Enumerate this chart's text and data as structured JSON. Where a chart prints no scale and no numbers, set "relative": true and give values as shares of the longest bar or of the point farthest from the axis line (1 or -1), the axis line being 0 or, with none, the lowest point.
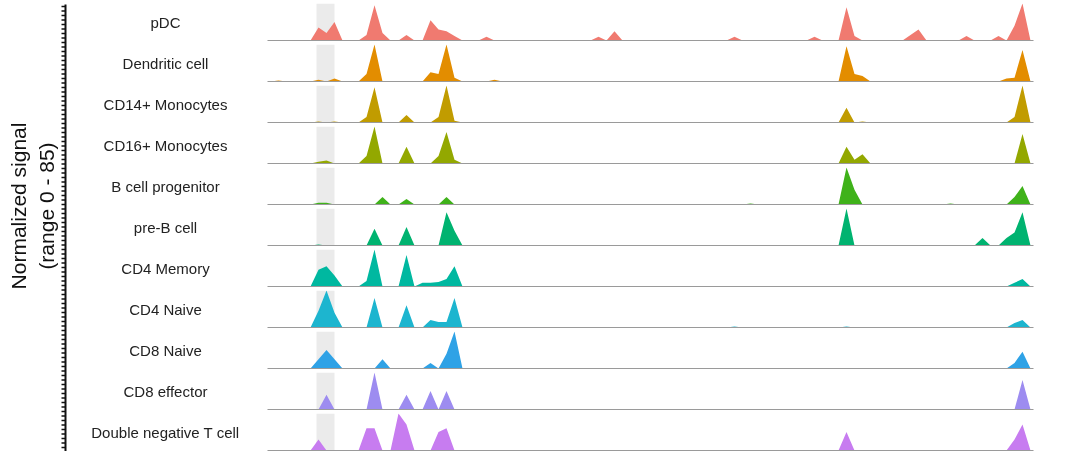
{
  "chart_data": [
    {
      "type": "area",
      "title": "pDC",
      "relative": true,
      "ylabel": "Normalized signal\n(range 0 - 85)",
      "categories": [
        null,
        null,
        null,
        null,
        null,
        null,
        null,
        null,
        null,
        null,
        null,
        null,
        null,
        null,
        null,
        null,
        null,
        null,
        null,
        null,
        null,
        null,
        null,
        null,
        null,
        null,
        null,
        null,
        null,
        null,
        null,
        null,
        null,
        null,
        null,
        null,
        null,
        null,
        null,
        null,
        null,
        null,
        null,
        null,
        null,
        null,
        null,
        null,
        null,
        null,
        null,
        null,
        null,
        null,
        null,
        null,
        null,
        null,
        null,
        null,
        null,
        null,
        null,
        null,
        null,
        null,
        null,
        null,
        null,
        null,
        null,
        null,
        null,
        null,
        null,
        null,
        null,
        null,
        null,
        null,
        null,
        null,
        null,
        null,
        null,
        null,
        null,
        null,
        null,
        null,
        null,
        null,
        null,
        null,
        null,
        null
      ],
      "series": [
        {
          "color": "#f07a70",
          "values": [
            0,
            0,
            0,
            0,
            0,
            0,
            0.35,
            0.2,
            0.5,
            0,
            0,
            0,
            0.15,
            0.95,
            0.2,
            0,
            0,
            0.15,
            0,
            0,
            0.55,
            0.3,
            0.25,
            0.12,
            0,
            0,
            0,
            0.1,
            0,
            0,
            0,
            0,
            0,
            0,
            0,
            0,
            0,
            0,
            0,
            0,
            0,
            0.1,
            0,
            0.25,
            0,
            0,
            0,
            0,
            0,
            0,
            0,
            0,
            0,
            0,
            0,
            0,
            0,
            0,
            0.1,
            0,
            0,
            0,
            0,
            0,
            0,
            0,
            0,
            0,
            0.1,
            0,
            0,
            0,
            0.9,
            0.12,
            0,
            0,
            0,
            0,
            0,
            0,
            0.15,
            0.3,
            0,
            0,
            0,
            0,
            0,
            0.12,
            0,
            0,
            0,
            0.12,
            0,
            0.4,
            1,
            0
          ]
        }
      ]
    },
    {
      "type": "area",
      "title": "Dendritic cell",
      "relative": true,
      "categories": [
        null,
        null,
        null,
        null,
        null,
        null,
        null,
        null,
        null,
        null,
        null,
        null,
        null,
        null,
        null,
        null,
        null,
        null,
        null,
        null,
        null,
        null,
        null,
        null,
        null,
        null,
        null,
        null,
        null,
        null,
        null,
        null,
        null,
        null,
        null,
        null,
        null,
        null,
        null,
        null,
        null,
        null,
        null,
        null,
        null,
        null,
        null,
        null,
        null,
        null,
        null,
        null,
        null,
        null,
        null,
        null,
        null,
        null,
        null,
        null,
        null,
        null,
        null,
        null,
        null,
        null,
        null,
        null,
        null,
        null,
        null,
        null,
        null,
        null,
        null,
        null,
        null,
        null,
        null,
        null,
        null,
        null,
        null,
        null,
        null,
        null,
        null,
        null,
        null,
        null,
        null,
        null,
        null,
        null,
        null,
        null
      ],
      "series": [
        {
          "color": "#e38d00",
          "values": [
            0,
            0.03,
            0,
            0,
            0,
            0,
            0.05,
            0,
            0.08,
            0,
            0,
            0,
            0.2,
            1,
            0,
            0,
            0,
            0,
            0,
            0,
            0.25,
            0.2,
            1,
            0.1,
            0,
            0,
            0,
            0,
            0.05,
            0,
            0,
            0,
            0,
            0,
            0,
            0,
            0,
            0,
            0,
            0,
            0,
            0,
            0,
            0,
            0,
            0,
            0,
            0,
            0,
            0,
            0,
            0,
            0,
            0,
            0,
            0,
            0,
            0,
            0,
            0,
            0,
            0,
            0,
            0,
            0,
            0,
            0,
            0,
            0,
            0,
            0,
            0,
            0.95,
            0.2,
            0.15,
            0,
            0,
            0,
            0,
            0,
            0,
            0,
            0,
            0,
            0,
            0,
            0,
            0,
            0,
            0,
            0,
            0,
            0.08,
            0.1,
            0.85,
            0
          ]
        }
      ]
    },
    {
      "type": "area",
      "title": "CD14+ Monocytes",
      "relative": true,
      "categories": [
        null,
        null,
        null,
        null,
        null,
        null,
        null,
        null,
        null,
        null,
        null,
        null,
        null,
        null,
        null,
        null,
        null,
        null,
        null,
        null,
        null,
        null,
        null,
        null,
        null,
        null,
        null,
        null,
        null,
        null,
        null,
        null,
        null,
        null,
        null,
        null,
        null,
        null,
        null,
        null,
        null,
        null,
        null,
        null,
        null,
        null,
        null,
        null,
        null,
        null,
        null,
        null,
        null,
        null,
        null,
        null,
        null,
        null,
        null,
        null,
        null,
        null,
        null,
        null,
        null,
        null,
        null,
        null,
        null,
        null,
        null,
        null,
        null,
        null,
        null,
        null,
        null,
        null,
        null,
        null,
        null,
        null,
        null,
        null,
        null,
        null,
        null,
        null,
        null,
        null,
        null,
        null,
        null,
        null,
        null,
        null
      ],
      "series": [
        {
          "color": "#c19c00",
          "values": [
            0,
            0,
            0,
            0,
            0,
            0,
            0.03,
            0,
            0.03,
            0,
            0,
            0,
            0.15,
            0.95,
            0,
            0,
            0,
            0.2,
            0,
            0,
            0,
            0.15,
            1,
            0.05,
            0,
            0,
            0,
            0,
            0,
            0,
            0,
            0,
            0,
            0,
            0,
            0,
            0,
            0,
            0,
            0,
            0,
            0,
            0,
            0,
            0,
            0,
            0,
            0,
            0,
            0,
            0,
            0,
            0,
            0,
            0,
            0,
            0,
            0,
            0,
            0,
            0,
            0,
            0,
            0,
            0,
            0,
            0,
            0,
            0,
            0,
            0,
            0,
            0.4,
            0,
            0.03,
            0,
            0,
            0,
            0,
            0,
            0,
            0,
            0,
            0,
            0,
            0,
            0,
            0,
            0,
            0,
            0,
            0,
            0,
            0.15,
            1,
            0
          ]
        }
      ]
    },
    {
      "type": "area",
      "title": "CD16+ Monocytes",
      "relative": true,
      "categories": [
        null,
        null,
        null,
        null,
        null,
        null,
        null,
        null,
        null,
        null,
        null,
        null,
        null,
        null,
        null,
        null,
        null,
        null,
        null,
        null,
        null,
        null,
        null,
        null,
        null,
        null,
        null,
        null,
        null,
        null,
        null,
        null,
        null,
        null,
        null,
        null,
        null,
        null,
        null,
        null,
        null,
        null,
        null,
        null,
        null,
        null,
        null,
        null,
        null,
        null,
        null,
        null,
        null,
        null,
        null,
        null,
        null,
        null,
        null,
        null,
        null,
        null,
        null,
        null,
        null,
        null,
        null,
        null,
        null,
        null,
        null,
        null,
        null,
        null,
        null,
        null,
        null,
        null,
        null,
        null,
        null,
        null,
        null,
        null,
        null,
        null,
        null,
        null,
        null,
        null,
        null,
        null,
        null,
        null,
        null,
        null
      ],
      "series": [
        {
          "color": "#93a800",
          "values": [
            0,
            0,
            0,
            0,
            0,
            0,
            0.05,
            0.08,
            0,
            0,
            0,
            0,
            0.2,
            1,
            0,
            0,
            0,
            0.45,
            0,
            0,
            0,
            0.2,
            0.85,
            0.1,
            0,
            0,
            0,
            0,
            0,
            0,
            0,
            0,
            0,
            0,
            0,
            0,
            0,
            0,
            0,
            0,
            0,
            0,
            0,
            0,
            0,
            0,
            0,
            0,
            0,
            0,
            0,
            0,
            0,
            0,
            0,
            0,
            0,
            0,
            0,
            0,
            0,
            0,
            0,
            0,
            0,
            0,
            0,
            0,
            0,
            0,
            0,
            0,
            0.45,
            0.1,
            0.25,
            0,
            0,
            0,
            0,
            0,
            0,
            0,
            0,
            0,
            0,
            0,
            0,
            0,
            0,
            0,
            0,
            0,
            0,
            0,
            0.8,
            0
          ]
        }
      ]
    },
    {
      "type": "area",
      "title": "B cell progenitor",
      "relative": true,
      "categories": [
        null,
        null,
        null,
        null,
        null,
        null,
        null,
        null,
        null,
        null,
        null,
        null,
        null,
        null,
        null,
        null,
        null,
        null,
        null,
        null,
        null,
        null,
        null,
        null,
        null,
        null,
        null,
        null,
        null,
        null,
        null,
        null,
        null,
        null,
        null,
        null,
        null,
        null,
        null,
        null,
        null,
        null,
        null,
        null,
        null,
        null,
        null,
        null,
        null,
        null,
        null,
        null,
        null,
        null,
        null,
        null,
        null,
        null,
        null,
        null,
        null,
        null,
        null,
        null,
        null,
        null,
        null,
        null,
        null,
        null,
        null,
        null,
        null,
        null,
        null,
        null,
        null,
        null,
        null,
        null,
        null,
        null,
        null,
        null,
        null,
        null,
        null,
        null,
        null,
        null,
        null,
        null,
        null,
        null,
        null,
        null
      ],
      "series": [
        {
          "color": "#3fb21a",
          "values": [
            0,
            0,
            0,
            0,
            0,
            0,
            0.05,
            0.05,
            0,
            0,
            0,
            0,
            0,
            0,
            0.2,
            0,
            0,
            0.15,
            0,
            0,
            0,
            0,
            0.2,
            0,
            0,
            0,
            0,
            0,
            0,
            0,
            0,
            0,
            0,
            0,
            0,
            0,
            0,
            0,
            0,
            0,
            0,
            0,
            0,
            0,
            0,
            0,
            0,
            0,
            0,
            0,
            0,
            0,
            0,
            0,
            0,
            0,
            0,
            0,
            0,
            0,
            0.03,
            0,
            0,
            0,
            0,
            0,
            0,
            0,
            0,
            0,
            0,
            0,
            1,
            0.4,
            0,
            0,
            0,
            0,
            0,
            0,
            0,
            0,
            0,
            0,
            0,
            0.03,
            0,
            0,
            0,
            0,
            0,
            0,
            0,
            0.2,
            0.5,
            0
          ]
        }
      ]
    },
    {
      "type": "area",
      "title": "pre-B cell",
      "relative": true,
      "categories": [
        null,
        null,
        null,
        null,
        null,
        null,
        null,
        null,
        null,
        null,
        null,
        null,
        null,
        null,
        null,
        null,
        null,
        null,
        null,
        null,
        null,
        null,
        null,
        null,
        null,
        null,
        null,
        null,
        null,
        null,
        null,
        null,
        null,
        null,
        null,
        null,
        null,
        null,
        null,
        null,
        null,
        null,
        null,
        null,
        null,
        null,
        null,
        null,
        null,
        null,
        null,
        null,
        null,
        null,
        null,
        null,
        null,
        null,
        null,
        null,
        null,
        null,
        null,
        null,
        null,
        null,
        null,
        null,
        null,
        null,
        null,
        null,
        null,
        null,
        null,
        null,
        null,
        null,
        null,
        null,
        null,
        null,
        null,
        null,
        null,
        null,
        null,
        null,
        null,
        null,
        null,
        null,
        null,
        null,
        null,
        null
      ],
      "series": [
        {
          "color": "#00b370",
          "values": [
            0,
            0,
            0,
            0,
            0,
            0,
            0.03,
            0,
            0,
            0,
            0,
            0,
            0,
            0.45,
            0,
            0,
            0,
            0.5,
            0,
            0,
            0,
            0,
            0.9,
            0.4,
            0,
            0,
            0,
            0,
            0,
            0,
            0,
            0,
            0,
            0,
            0,
            0,
            0,
            0,
            0,
            0,
            0,
            0,
            0,
            0,
            0,
            0,
            0,
            0,
            0,
            0,
            0,
            0,
            0,
            0,
            0,
            0,
            0,
            0,
            0,
            0,
            0,
            0,
            0,
            0,
            0,
            0,
            0,
            0,
            0,
            0,
            0,
            0,
            1,
            0,
            0,
            0,
            0,
            0,
            0,
            0,
            0,
            0,
            0,
            0,
            0,
            0,
            0,
            0,
            0,
            0.2,
            0,
            0,
            0.2,
            0.35,
            0.9,
            0
          ]
        }
      ]
    },
    {
      "type": "area",
      "title": "CD4 Memory",
      "relative": true,
      "categories": [
        null,
        null,
        null,
        null,
        null,
        null,
        null,
        null,
        null,
        null,
        null,
        null,
        null,
        null,
        null,
        null,
        null,
        null,
        null,
        null,
        null,
        null,
        null,
        null,
        null,
        null,
        null,
        null,
        null,
        null,
        null,
        null,
        null,
        null,
        null,
        null,
        null,
        null,
        null,
        null,
        null,
        null,
        null,
        null,
        null,
        null,
        null,
        null,
        null,
        null,
        null,
        null,
        null,
        null,
        null,
        null,
        null,
        null,
        null,
        null,
        null,
        null,
        null,
        null,
        null,
        null,
        null,
        null,
        null,
        null,
        null,
        null,
        null,
        null,
        null,
        null,
        null,
        null,
        null,
        null,
        null,
        null,
        null,
        null,
        null,
        null,
        null,
        null,
        null,
        null,
        null,
        null,
        null,
        null,
        null,
        null
      ],
      "series": [
        {
          "color": "#00b8a0",
          "values": [
            0,
            0,
            0,
            0,
            0,
            0,
            0.45,
            0.55,
            0.3,
            0,
            0,
            0,
            0.15,
            1,
            0,
            0,
            0,
            0.85,
            0,
            0.1,
            0.1,
            0.12,
            0.2,
            0.55,
            0,
            0,
            0,
            0,
            0,
            0,
            0,
            0,
            0,
            0,
            0,
            0,
            0,
            0,
            0,
            0,
            0,
            0,
            0,
            0,
            0,
            0,
            0,
            0,
            0,
            0,
            0,
            0,
            0,
            0,
            0,
            0,
            0,
            0,
            0,
            0,
            0,
            0,
            0,
            0,
            0,
            0,
            0,
            0,
            0,
            0,
            0,
            0,
            0,
            0,
            0,
            0,
            0,
            0,
            0,
            0,
            0,
            0,
            0,
            0,
            0,
            0,
            0,
            0,
            0,
            0,
            0,
            0,
            0,
            0.1,
            0.2,
            0
          ]
        }
      ]
    },
    {
      "type": "area",
      "title": "CD4 Naive",
      "relative": true,
      "categories": [
        null,
        null,
        null,
        null,
        null,
        null,
        null,
        null,
        null,
        null,
        null,
        null,
        null,
        null,
        null,
        null,
        null,
        null,
        null,
        null,
        null,
        null,
        null,
        null,
        null,
        null,
        null,
        null,
        null,
        null,
        null,
        null,
        null,
        null,
        null,
        null,
        null,
        null,
        null,
        null,
        null,
        null,
        null,
        null,
        null,
        null,
        null,
        null,
        null,
        null,
        null,
        null,
        null,
        null,
        null,
        null,
        null,
        null,
        null,
        null,
        null,
        null,
        null,
        null,
        null,
        null,
        null,
        null,
        null,
        null,
        null,
        null,
        null,
        null,
        null,
        null,
        null,
        null,
        null,
        null,
        null,
        null,
        null,
        null,
        null,
        null,
        null,
        null,
        null,
        null,
        null,
        null,
        null,
        null,
        null,
        null
      ],
      "series": [
        {
          "color": "#1db5cf",
          "values": [
            0,
            0,
            0,
            0,
            0,
            0,
            0.45,
            1,
            0.4,
            0,
            0,
            0,
            0,
            0.8,
            0,
            0,
            0,
            0.6,
            0,
            0,
            0.2,
            0.15,
            0.15,
            0.8,
            0,
            0,
            0,
            0,
            0,
            0,
            0,
            0,
            0,
            0,
            0,
            0,
            0,
            0,
            0,
            0,
            0,
            0,
            0,
            0,
            0,
            0,
            0,
            0,
            0,
            0,
            0,
            0,
            0,
            0,
            0,
            0,
            0,
            0,
            0.03,
            0,
            0,
            0,
            0,
            0,
            0,
            0,
            0,
            0,
            0,
            0,
            0,
            0,
            0.03,
            0,
            0,
            0,
            0,
            0,
            0,
            0,
            0,
            0,
            0,
            0,
            0,
            0,
            0,
            0,
            0,
            0,
            0,
            0,
            0,
            0.12,
            0.2,
            0
          ]
        }
      ]
    },
    {
      "type": "area",
      "title": "CD8 Naive",
      "relative": true,
      "categories": [
        null,
        null,
        null,
        null,
        null,
        null,
        null,
        null,
        null,
        null,
        null,
        null,
        null,
        null,
        null,
        null,
        null,
        null,
        null,
        null,
        null,
        null,
        null,
        null,
        null,
        null,
        null,
        null,
        null,
        null,
        null,
        null,
        null,
        null,
        null,
        null,
        null,
        null,
        null,
        null,
        null,
        null,
        null,
        null,
        null,
        null,
        null,
        null,
        null,
        null,
        null,
        null,
        null,
        null,
        null,
        null,
        null,
        null,
        null,
        null,
        null,
        null,
        null,
        null,
        null,
        null,
        null,
        null,
        null,
        null,
        null,
        null,
        null,
        null,
        null,
        null,
        null,
        null,
        null,
        null,
        null,
        null,
        null,
        null,
        null,
        null,
        null,
        null,
        null,
        null,
        null,
        null,
        null,
        null,
        null,
        null
      ],
      "series": [
        {
          "color": "#2fa2e6",
          "values": [
            0,
            0,
            0,
            0,
            0,
            0,
            0.25,
            0.5,
            0.25,
            0,
            0,
            0,
            0,
            0,
            0.25,
            0,
            0,
            0,
            0,
            0,
            0.15,
            0,
            0.4,
            1,
            0,
            0,
            0,
            0,
            0,
            0,
            0,
            0,
            0,
            0,
            0,
            0,
            0,
            0,
            0,
            0,
            0,
            0,
            0,
            0,
            0,
            0,
            0,
            0,
            0,
            0,
            0,
            0,
            0,
            0,
            0,
            0,
            0,
            0,
            0,
            0,
            0,
            0,
            0,
            0,
            0,
            0,
            0,
            0,
            0,
            0,
            0,
            0,
            0,
            0,
            0,
            0,
            0,
            0,
            0,
            0,
            0,
            0,
            0,
            0,
            0,
            0,
            0,
            0,
            0,
            0,
            0,
            0,
            0,
            0.15,
            0.45,
            0
          ]
        }
      ]
    },
    {
      "type": "area",
      "title": "CD8 effector",
      "relative": true,
      "categories": [
        null,
        null,
        null,
        null,
        null,
        null,
        null,
        null,
        null,
        null,
        null,
        null,
        null,
        null,
        null,
        null,
        null,
        null,
        null,
        null,
        null,
        null,
        null,
        null,
        null,
        null,
        null,
        null,
        null,
        null,
        null,
        null,
        null,
        null,
        null,
        null,
        null,
        null,
        null,
        null,
        null,
        null,
        null,
        null,
        null,
        null,
        null,
        null,
        null,
        null,
        null,
        null,
        null,
        null,
        null,
        null,
        null,
        null,
        null,
        null,
        null,
        null,
        null,
        null,
        null,
        null,
        null,
        null,
        null,
        null,
        null,
        null,
        null,
        null,
        null,
        null,
        null,
        null,
        null,
        null,
        null,
        null,
        null,
        null,
        null,
        null,
        null,
        null,
        null,
        null,
        null,
        null,
        null,
        null,
        null,
        null
      ],
      "series": [
        {
          "color": "#9d8cf0",
          "values": [
            0,
            0,
            0,
            0,
            0,
            0,
            0,
            0.4,
            0,
            0,
            0,
            0,
            0,
            1,
            0,
            0,
            0,
            0.4,
            0,
            0,
            0.5,
            0,
            0.5,
            0,
            0,
            0,
            0,
            0,
            0,
            0,
            0,
            0,
            0,
            0,
            0,
            0,
            0,
            0,
            0,
            0,
            0,
            0,
            0,
            0,
            0,
            0,
            0,
            0,
            0,
            0,
            0,
            0,
            0,
            0,
            0,
            0,
            0,
            0,
            0,
            0,
            0,
            0,
            0,
            0,
            0,
            0,
            0,
            0,
            0,
            0,
            0,
            0,
            0,
            0,
            0,
            0,
            0,
            0,
            0,
            0,
            0,
            0,
            0,
            0,
            0,
            0,
            0,
            0,
            0,
            0,
            0,
            0,
            0,
            0,
            0.8,
            0
          ]
        }
      ]
    },
    {
      "type": "area",
      "title": "Double negative T cell",
      "relative": true,
      "categories": [
        null,
        null,
        null,
        null,
        null,
        null,
        null,
        null,
        null,
        null,
        null,
        null,
        null,
        null,
        null,
        null,
        null,
        null,
        null,
        null,
        null,
        null,
        null,
        null,
        null,
        null,
        null,
        null,
        null,
        null,
        null,
        null,
        null,
        null,
        null,
        null,
        null,
        null,
        null,
        null,
        null,
        null,
        null,
        null,
        null,
        null,
        null,
        null,
        null,
        null,
        null,
        null,
        null,
        null,
        null,
        null,
        null,
        null,
        null,
        null,
        null,
        null,
        null,
        null,
        null,
        null,
        null,
        null,
        null,
        null,
        null,
        null,
        null,
        null,
        null,
        null,
        null,
        null,
        null,
        null,
        null,
        null,
        null,
        null,
        null,
        null,
        null,
        null,
        null,
        null,
        null,
        null,
        null,
        null,
        null,
        null
      ],
      "series": [
        {
          "color": "#c77cf0",
          "values": [
            0,
            0,
            0,
            0,
            0,
            0,
            0.3,
            0,
            0,
            0,
            0,
            0,
            0.6,
            0.6,
            0,
            0,
            1,
            0.7,
            0,
            0,
            0,
            0.5,
            0.6,
            0,
            0,
            0,
            0,
            0,
            0,
            0,
            0,
            0,
            0,
            0,
            0,
            0,
            0,
            0,
            0,
            0,
            0,
            0,
            0,
            0,
            0,
            0,
            0,
            0,
            0,
            0,
            0,
            0,
            0,
            0,
            0,
            0,
            0,
            0,
            0,
            0,
            0,
            0,
            0,
            0,
            0,
            0,
            0,
            0,
            0,
            0,
            0,
            0,
            0.5,
            0,
            0,
            0,
            0,
            0,
            0,
            0,
            0,
            0,
            0,
            0,
            0,
            0,
            0,
            0,
            0,
            0,
            0,
            0,
            0,
            0.3,
            0.7,
            0
          ]
        }
      ]
    }
  ]
}
